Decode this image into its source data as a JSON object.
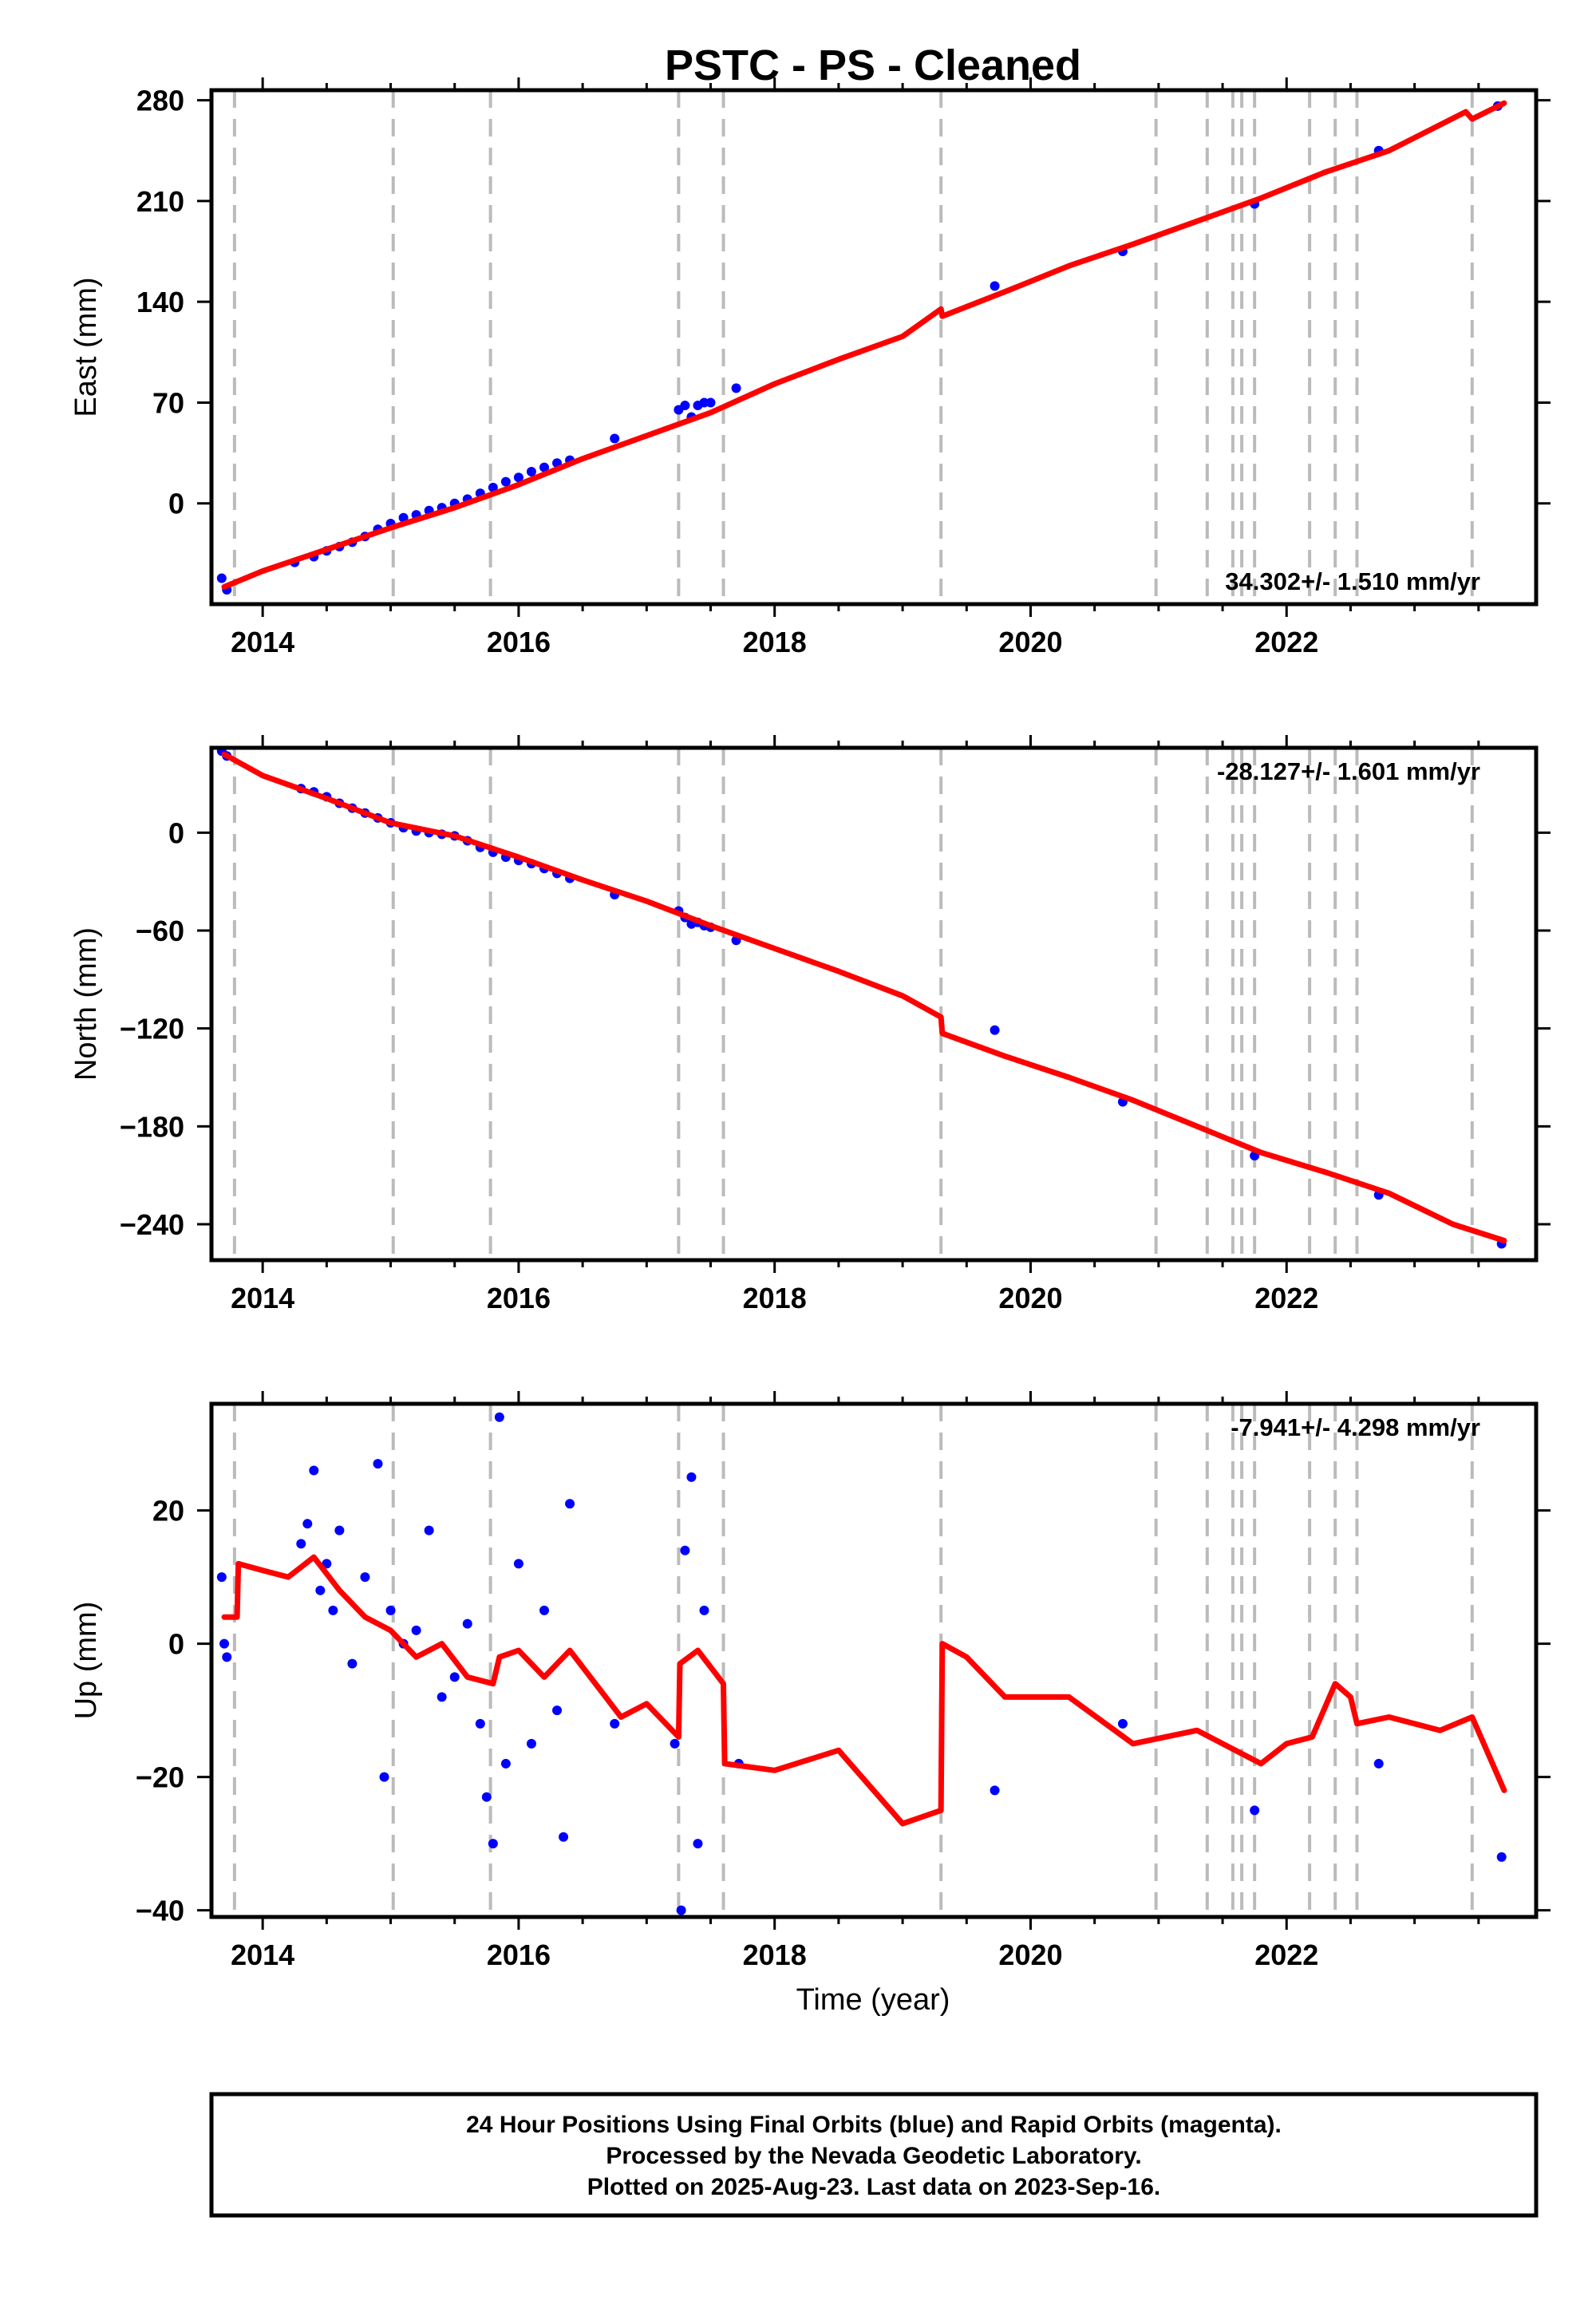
{
  "chart_data": {
    "title": "PSTC  - PS - Cleaned",
    "type": "scatter",
    "x_ticks": [
      "2014",
      "2016",
      "2018",
      "2020",
      "2022"
    ],
    "xlabel": "Time (year)",
    "xlim": [
      2013.6,
      2023.95
    ],
    "event_lines": [
      2013.78,
      2015.02,
      2015.78,
      2017.25,
      2017.6,
      2019.3,
      2020.98,
      2021.38,
      2021.58,
      2021.65,
      2021.75,
      2022.18,
      2022.38,
      2022.55,
      2023.45
    ],
    "colors": {
      "final_orbits": "#0000ff",
      "fit": "#ff0000",
      "event_line": "#bbbbbb"
    },
    "panels": [
      {
        "component": "east",
        "ylabel": "East (mm)",
        "ylim": [
          -70,
          287
        ],
        "yticks": [
          0,
          70,
          140,
          210,
          280
        ],
        "y_tick_labels": [
          "0",
          "70",
          "140",
          "210",
          "280"
        ],
        "rate": "34.302+/- 1.510 mm/yr",
        "rate_position": "bottom-right",
        "series": [
          {
            "name": "Final Orbits",
            "type": "scatter",
            "x": [
              2013.68,
              2013.72,
              2014.25,
              2014.4,
              2014.5,
              2014.6,
              2014.7,
              2014.8,
              2014.9,
              2015.0,
              2015.1,
              2015.2,
              2015.3,
              2015.4,
              2015.5,
              2015.6,
              2015.7,
              2015.8,
              2015.9,
              2016.0,
              2016.1,
              2016.2,
              2016.3,
              2016.4,
              2016.75,
              2017.25,
              2017.3,
              2017.35,
              2017.4,
              2017.45,
              2017.5,
              2017.7,
              2019.72,
              2020.72,
              2021.75,
              2022.72,
              2023.65
            ],
            "y": [
              -52,
              -60,
              -41,
              -37,
              -33,
              -30,
              -27,
              -23,
              -18,
              -14,
              -10,
              -8,
              -5,
              -3,
              0,
              3,
              7,
              11,
              15,
              18,
              22,
              25,
              28,
              30,
              45,
              65,
              68,
              60,
              68,
              70,
              70,
              80,
              151,
              175,
              208,
              245,
              276
            ]
          },
          {
            "name": "Fit",
            "type": "line",
            "x": [
              2013.7,
              2014.0,
              2014.5,
              2015.0,
              2015.5,
              2016.0,
              2016.5,
              2017.0,
              2017.5,
              2018.0,
              2018.5,
              2019.0,
              2019.3,
              2019.31,
              2019.8,
              2020.3,
              2020.8,
              2021.3,
              2021.8,
              2022.3,
              2022.8,
              2023.4,
              2023.45,
              2023.7
            ],
            "y": [
              -58,
              -47,
              -32,
              -17,
              -3,
              13,
              31,
              47,
              63,
              83,
              100,
              116,
              135,
              130,
              147,
              165,
              180,
              196,
              212,
              230,
              245,
              272,
              267,
              278
            ]
          }
        ]
      },
      {
        "component": "north",
        "ylabel": "North (mm)",
        "ylim": [
          -262,
          52
        ],
        "yticks": [
          -240,
          -180,
          -120,
          -60,
          0
        ],
        "y_tick_labels": [
          "−240",
          "−180",
          "−120",
          "−60",
          "0"
        ],
        "rate": "-28.127+/- 1.601 mm/yr",
        "rate_position": "top-right",
        "series": [
          {
            "name": "Final Orbits",
            "type": "scatter",
            "x": [
              2013.68,
              2013.72,
              2014.3,
              2014.4,
              2014.5,
              2014.6,
              2014.7,
              2014.8,
              2014.9,
              2015.0,
              2015.1,
              2015.2,
              2015.3,
              2015.4,
              2015.5,
              2015.6,
              2015.7,
              2015.8,
              2015.9,
              2016.0,
              2016.1,
              2016.2,
              2016.3,
              2016.4,
              2016.75,
              2017.25,
              2017.3,
              2017.35,
              2017.4,
              2017.45,
              2017.5,
              2017.7,
              2019.72,
              2020.72,
              2021.75,
              2022.72,
              2023.68
            ],
            "y": [
              50,
              47,
              27,
              25,
              22,
              18,
              15,
              12,
              9,
              6,
              3,
              1,
              0,
              -1,
              -2,
              -5,
              -9,
              -12,
              -15,
              -17,
              -19,
              -22,
              -25,
              -28,
              -38,
              -48,
              -52,
              -56,
              -55,
              -57,
              -58,
              -66,
              -121,
              -165,
              -198,
              -222,
              -252
            ]
          },
          {
            "name": "Fit",
            "type": "line",
            "x": [
              2013.7,
              2014.0,
              2014.5,
              2015.0,
              2015.5,
              2016.0,
              2016.5,
              2017.0,
              2017.5,
              2018.0,
              2018.5,
              2019.0,
              2019.3,
              2019.31,
              2019.8,
              2020.3,
              2020.8,
              2021.3,
              2021.8,
              2022.3,
              2022.8,
              2023.3,
              2023.7
            ],
            "y": [
              48,
              35,
              21,
              6,
              -2,
              -15,
              -29,
              -42,
              -57,
              -71,
              -85,
              -100,
              -113,
              -123,
              -137,
              -150,
              -164,
              -180,
              -196,
              -208,
              -221,
              -240,
              -250
            ]
          }
        ]
      },
      {
        "component": "up",
        "ylabel": "Up (mm)",
        "ylim": [
          -41,
          36
        ],
        "yticks": [
          -40,
          -20,
          0,
          20
        ],
        "y_tick_labels": [
          "−40",
          "−20",
          "0",
          "20"
        ],
        "rate": "-7.941+/- 4.298 mm/yr",
        "rate_position": "top-right",
        "series": [
          {
            "name": "Final Orbits",
            "type": "scatter",
            "x": [
              2013.68,
              2013.7,
              2013.72,
              2014.3,
              2014.35,
              2014.4,
              2014.45,
              2014.5,
              2014.55,
              2014.6,
              2014.7,
              2014.8,
              2014.9,
              2014.95,
              2015.0,
              2015.1,
              2015.2,
              2015.3,
              2015.4,
              2015.5,
              2015.6,
              2015.7,
              2015.75,
              2015.8,
              2015.85,
              2015.9,
              2016.0,
              2016.1,
              2016.2,
              2016.3,
              2016.35,
              2016.4,
              2016.75,
              2017.22,
              2017.27,
              2017.3,
              2017.35,
              2017.4,
              2017.45,
              2017.72,
              2019.72,
              2020.72,
              2021.75,
              2022.72,
              2023.68
            ],
            "y": [
              10,
              0,
              -2,
              15,
              18,
              26,
              8,
              12,
              5,
              17,
              -3,
              10,
              27,
              -20,
              5,
              0,
              2,
              17,
              -8,
              -5,
              3,
              -12,
              -23,
              -30,
              34,
              -18,
              12,
              -15,
              5,
              -10,
              -29,
              21,
              -12,
              -15,
              -40,
              14,
              25,
              -30,
              5,
              -18,
              -22,
              -12,
              -25,
              -18,
              -32
            ]
          },
          {
            "name": "Fit",
            "type": "line",
            "x": [
              2013.7,
              2013.8,
              2013.81,
              2014.0,
              2014.2,
              2014.4,
              2014.6,
              2014.8,
              2015.0,
              2015.2,
              2015.4,
              2015.6,
              2015.8,
              2015.85,
              2016.0,
              2016.2,
              2016.4,
              2016.6,
              2016.8,
              2017.0,
              2017.25,
              2017.26,
              2017.4,
              2017.6,
              2017.61,
              2018.0,
              2018.5,
              2019.0,
              2019.3,
              2019.31,
              2019.5,
              2019.8,
              2020.3,
              2020.8,
              2021.3,
              2021.8,
              2022.0,
              2022.2,
              2022.38,
              2022.5,
              2022.55,
              2022.8,
              2023.2,
              2023.45,
              2023.7
            ],
            "y": [
              4,
              4,
              12,
              11,
              10,
              13,
              8,
              4,
              2,
              -2,
              0,
              -5,
              -6,
              -2,
              -1,
              -5,
              -1,
              -6,
              -11,
              -9,
              -14,
              -3,
              -1,
              -6,
              -18,
              -19,
              -16,
              -27,
              -25,
              0,
              -2,
              -8,
              -8,
              -15,
              -13,
              -18,
              -15,
              -14,
              -6,
              -8,
              -12,
              -11,
              -13,
              -11,
              -22
            ]
          }
        ]
      }
    ]
  },
  "note": {
    "line1": "24 Hour Positions Using Final Orbits (blue) and Rapid Orbits (magenta).",
    "line2": "Processed by the Nevada Geodetic Laboratory.",
    "line3": "Plotted on 2025-Aug-23. Last data on 2023-Sep-16."
  }
}
